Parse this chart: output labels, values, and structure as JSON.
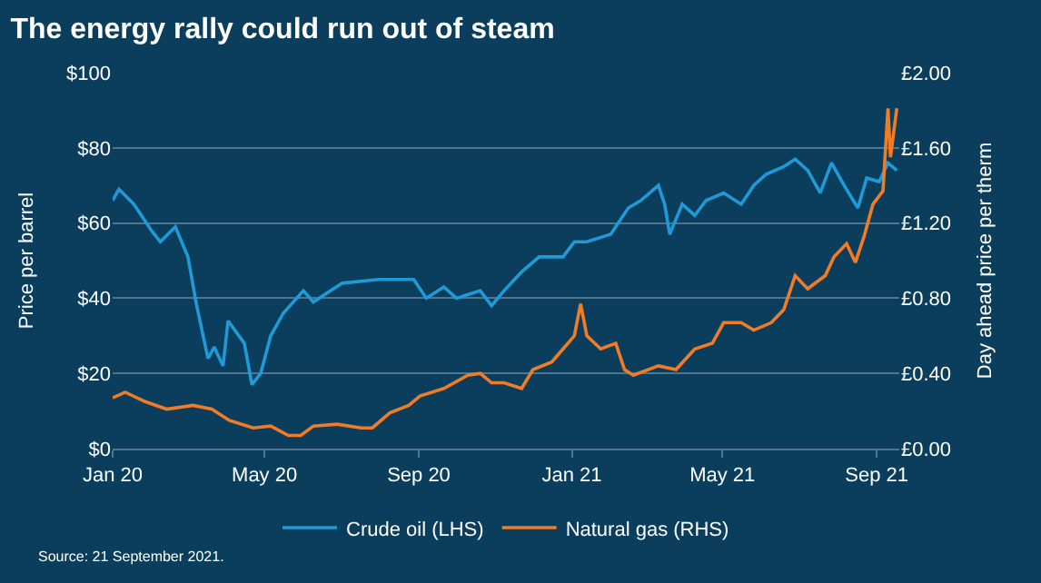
{
  "chart_data": {
    "type": "line",
    "title": "The energy rally could run out of steam",
    "ylabel": "Price per barrel",
    "y2label": "Day ahead price per therm",
    "annotations": [
      "Source: 21 September 2021."
    ],
    "xlim": [
      "2020-01-01",
      "2021-09-19"
    ],
    "xticks": [
      {
        "value": "2020-01-01",
        "label": "Jan 20"
      },
      {
        "value": "2020-05-01",
        "label": "May 20"
      },
      {
        "value": "2020-09-01",
        "label": "Sep 20"
      },
      {
        "value": "2021-01-01",
        "label": "Jan 21"
      },
      {
        "value": "2021-05-01",
        "label": "May 21"
      },
      {
        "value": "2021-09-01",
        "label": "Sep 21"
      }
    ],
    "ylim": [
      0,
      100
    ],
    "yticks": [
      {
        "value": 0,
        "label": "$0"
      },
      {
        "value": 20,
        "label": "$20"
      },
      {
        "value": 40,
        "label": "$40"
      },
      {
        "value": 60,
        "label": "$60"
      },
      {
        "value": 80,
        "label": "$80"
      },
      {
        "value": 100,
        "label": "$100"
      }
    ],
    "y2lim": [
      0,
      2
    ],
    "y2ticks": [
      {
        "value": 0,
        "label": "£0.00"
      },
      {
        "value": 0.4,
        "label": "£0.40"
      },
      {
        "value": 0.8,
        "label": "£0.80"
      },
      {
        "value": 1.2,
        "label": "£1.20"
      },
      {
        "value": 1.6,
        "label": "£1.60"
      },
      {
        "value": 2,
        "label": "£2.00"
      }
    ],
    "grid": "y",
    "legend": "bottom",
    "marker": "none",
    "line_style": "solid",
    "series": [
      {
        "name": "Crude oil (LHS)",
        "color": "#1f9ad6",
        "x": [
          "2020-01-01",
          "2020-01-06",
          "2020-01-18",
          "2020-02-01",
          "2020-02-08",
          "2020-02-20",
          "2020-02-25",
          "2020-03-01",
          "2020-03-08",
          "2020-03-17",
          "2020-03-22",
          "2020-03-29",
          "2020-04-02",
          "2020-04-15",
          "2020-04-21",
          "2020-04-28",
          "2020-05-06",
          "2020-05-16",
          "2020-06-01",
          "2020-06-09",
          "2020-07-02",
          "2020-07-31",
          "2020-08-28",
          "2020-09-07",
          "2020-09-21",
          "2020-10-01",
          "2020-10-20",
          "2020-10-29",
          "2020-11-08",
          "2020-11-22",
          "2020-12-06",
          "2020-12-25",
          "2021-01-03",
          "2021-01-13",
          "2021-02-01",
          "2021-02-15",
          "2021-02-25",
          "2021-03-11",
          "2021-03-16",
          "2021-03-20",
          "2021-03-30",
          "2021-04-09",
          "2021-04-18",
          "2021-05-02",
          "2021-05-16",
          "2021-05-26",
          "2021-06-05",
          "2021-06-19",
          "2021-06-28",
          "2021-07-08",
          "2021-07-18",
          "2021-07-27",
          "2021-08-06",
          "2021-08-17",
          "2021-08-24",
          "2021-09-03",
          "2021-09-10",
          "2021-09-17"
        ],
        "values": [
          66,
          69,
          65,
          58,
          55,
          59,
          55,
          51,
          38,
          24,
          27,
          22,
          34,
          28,
          17,
          20,
          30,
          36,
          42,
          39,
          44,
          45,
          45,
          40,
          43,
          40,
          42,
          38,
          42,
          47,
          51,
          51,
          55,
          55,
          57,
          64,
          66,
          70,
          65,
          57,
          65,
          62,
          66,
          68,
          65,
          70,
          73,
          75,
          77,
          74,
          68,
          76,
          70,
          64,
          72,
          71,
          76,
          74
        ]
      },
      {
        "name": "Natural gas (RHS)",
        "color": "#f07c28",
        "axis": "y2",
        "x": [
          "2020-01-01",
          "2020-01-11",
          "2020-01-27",
          "2020-02-13",
          "2020-03-05",
          "2020-03-20",
          "2020-04-03",
          "2020-04-22",
          "2020-05-06",
          "2020-05-20",
          "2020-05-30",
          "2020-06-09",
          "2020-06-28",
          "2020-07-17",
          "2020-07-26",
          "2020-08-09",
          "2020-08-24",
          "2020-09-02",
          "2020-09-21",
          "2020-10-10",
          "2020-10-20",
          "2020-10-29",
          "2020-11-08",
          "2020-11-22",
          "2020-12-01",
          "2020-12-16",
          "2020-12-25",
          "2021-01-03",
          "2021-01-08",
          "2021-01-13",
          "2021-01-24",
          "2021-02-05",
          "2021-02-12",
          "2021-02-19",
          "2021-03-11",
          "2021-03-25",
          "2021-04-09",
          "2021-04-23",
          "2021-05-02",
          "2021-05-16",
          "2021-05-26",
          "2021-06-09",
          "2021-06-19",
          "2021-06-28",
          "2021-07-08",
          "2021-07-22",
          "2021-07-29",
          "2021-08-08",
          "2021-08-15",
          "2021-08-22",
          "2021-08-29",
          "2021-09-06",
          "2021-09-10",
          "2021-09-12",
          "2021-09-17"
        ],
        "values": [
          0.27,
          0.3,
          0.25,
          0.21,
          0.23,
          0.21,
          0.15,
          0.11,
          0.12,
          0.07,
          0.07,
          0.12,
          0.13,
          0.11,
          0.11,
          0.19,
          0.23,
          0.28,
          0.32,
          0.39,
          0.4,
          0.35,
          0.35,
          0.32,
          0.42,
          0.46,
          0.53,
          0.6,
          0.77,
          0.6,
          0.53,
          0.56,
          0.42,
          0.39,
          0.44,
          0.42,
          0.53,
          0.56,
          0.67,
          0.67,
          0.63,
          0.67,
          0.74,
          0.92,
          0.85,
          0.92,
          1.02,
          1.09,
          0.99,
          1.13,
          1.3,
          1.37,
          1.81,
          1.55,
          1.81
        ]
      }
    ]
  }
}
